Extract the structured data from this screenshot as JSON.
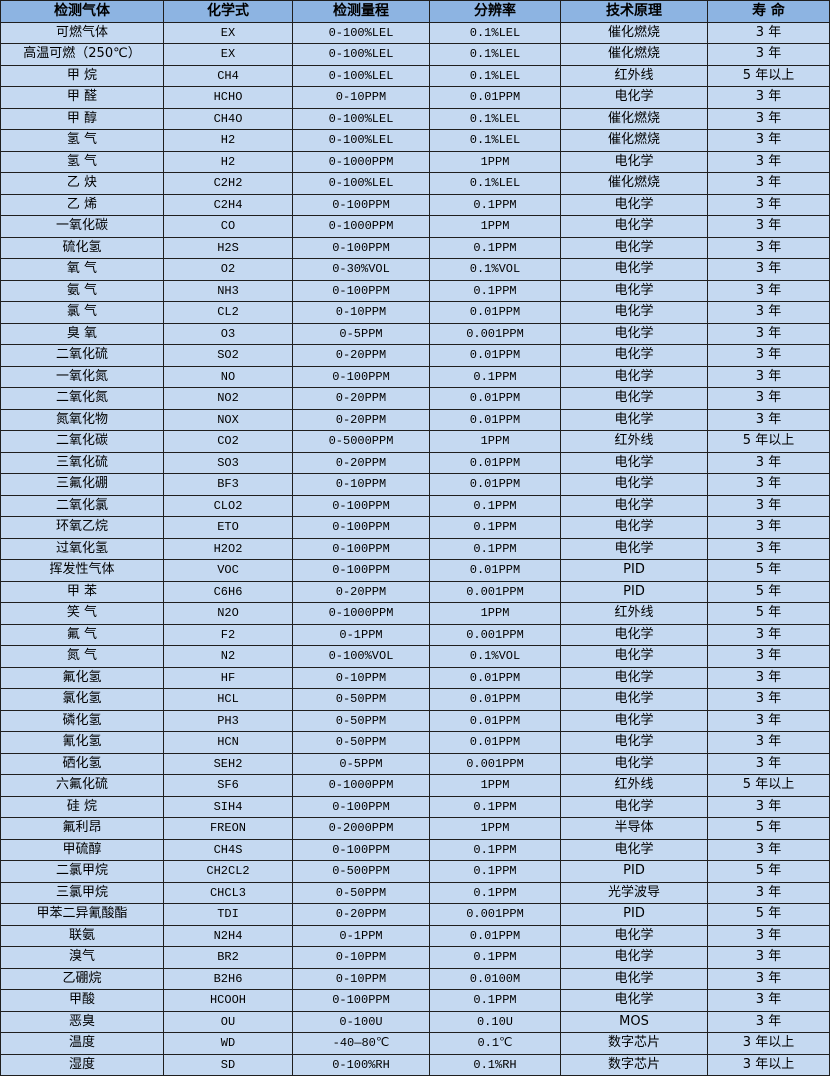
{
  "colors": {
    "header_bg": "#8db4e2",
    "row_bg": "#c5d9f1",
    "border": "#1f1f1f"
  },
  "table": {
    "headers": [
      "检测气体",
      "化学式",
      "检测量程",
      "分辨率",
      "技术原理",
      "寿 命"
    ],
    "rows": [
      [
        "可燃气体",
        "EX",
        "0-100%LEL",
        "0.1%LEL",
        "催化燃烧",
        "3 年"
      ],
      [
        "高温可燃（250℃）",
        "EX",
        "0-100%LEL",
        "0.1%LEL",
        "催化燃烧",
        "3 年"
      ],
      [
        "甲 烷",
        "CH4",
        "0-100%LEL",
        "0.1%LEL",
        "红外线",
        "5 年以上"
      ],
      [
        "甲 醛",
        "HCHO",
        "0-10PPM",
        "0.01PPM",
        "电化学",
        "3 年"
      ],
      [
        "甲 醇",
        "CH4O",
        "0-100%LEL",
        "0.1%LEL",
        "催化燃烧",
        "3 年"
      ],
      [
        "氢 气",
        "H2",
        "0-100%LEL",
        "0.1%LEL",
        "催化燃烧",
        "3 年"
      ],
      [
        "氢 气",
        "H2",
        "0-1000PPM",
        "1PPM",
        "电化学",
        "3 年"
      ],
      [
        "乙 炔",
        "C2H2",
        "0-100%LEL",
        "0.1%LEL",
        "催化燃烧",
        "3 年"
      ],
      [
        "乙 烯",
        "C2H4",
        "0-100PPM",
        "0.1PPM",
        "电化学",
        "3 年"
      ],
      [
        "一氧化碳",
        "CO",
        "0-1000PPM",
        "1PPM",
        "电化学",
        "3 年"
      ],
      [
        "硫化氢",
        "H2S",
        "0-100PPM",
        "0.1PPM",
        "电化学",
        "3 年"
      ],
      [
        "氧 气",
        "O2",
        "0-30%VOL",
        "0.1%VOL",
        "电化学",
        "3 年"
      ],
      [
        "氨 气",
        "NH3",
        "0-100PPM",
        "0.1PPM",
        "电化学",
        "3 年"
      ],
      [
        "氯 气",
        "CL2",
        "0-10PPM",
        "0.01PPM",
        "电化学",
        "3 年"
      ],
      [
        "臭 氧",
        "O3",
        "0-5PPM",
        "0.001PPM",
        "电化学",
        "3 年"
      ],
      [
        "二氧化硫",
        "SO2",
        "0-20PPM",
        "0.01PPM",
        "电化学",
        "3 年"
      ],
      [
        "一氧化氮",
        "NO",
        "0-100PPM",
        "0.1PPM",
        "电化学",
        "3 年"
      ],
      [
        "二氧化氮",
        "NO2",
        "0-20PPM",
        "0.01PPM",
        "电化学",
        "3 年"
      ],
      [
        "氮氧化物",
        "NOX",
        "0-20PPM",
        "0.01PPM",
        "电化学",
        "3 年"
      ],
      [
        "二氧化碳",
        "CO2",
        "0-5000PPM",
        "1PPM",
        "红外线",
        "5 年以上"
      ],
      [
        "三氧化硫",
        "SO3",
        "0-20PPM",
        "0.01PPM",
        "电化学",
        "3 年"
      ],
      [
        "三氟化硼",
        "BF3",
        "0-10PPM",
        "0.01PPM",
        "电化学",
        "3 年"
      ],
      [
        "二氧化氯",
        "CLO2",
        "0-100PPM",
        "0.1PPM",
        "电化学",
        "3 年"
      ],
      [
        "环氧乙烷",
        "ETO",
        "0-100PPM",
        "0.1PPM",
        "电化学",
        "3 年"
      ],
      [
        "过氧化氢",
        "H2O2",
        "0-100PPM",
        "0.1PPM",
        "电化学",
        "3 年"
      ],
      [
        "挥发性气体",
        "VOC",
        "0-100PPM",
        "0.01PPM",
        "PID",
        "5 年"
      ],
      [
        "甲 苯",
        "C6H6",
        "0-20PPM",
        "0.001PPM",
        "PID",
        "5 年"
      ],
      [
        "笑 气",
        "N2O",
        "0-1000PPM",
        "1PPM",
        "红外线",
        "5 年"
      ],
      [
        "氟 气",
        "F2",
        "0-1PPM",
        "0.001PPM",
        "电化学",
        "3 年"
      ],
      [
        "氮 气",
        "N2",
        "0-100%VOL",
        "0.1%VOL",
        "电化学",
        "3 年"
      ],
      [
        "氟化氢",
        "HF",
        "0-10PPM",
        "0.01PPM",
        "电化学",
        "3 年"
      ],
      [
        "氯化氢",
        "HCL",
        "0-50PPM",
        "0.01PPM",
        "电化学",
        "3 年"
      ],
      [
        "磷化氢",
        "PH3",
        "0-50PPM",
        "0.01PPM",
        "电化学",
        "3 年"
      ],
      [
        "氰化氢",
        "HCN",
        "0-50PPM",
        "0.01PPM",
        "电化学",
        "3 年"
      ],
      [
        "硒化氢",
        "SEH2",
        "0-5PPM",
        "0.001PPM",
        "电化学",
        "3 年"
      ],
      [
        "六氟化硫",
        "SF6",
        "0-1000PPM",
        "1PPM",
        "红外线",
        "5 年以上"
      ],
      [
        "硅 烷",
        "SIH4",
        "0-100PPM",
        "0.1PPM",
        "电化学",
        "3 年"
      ],
      [
        "氟利昂",
        "FREON",
        "0-2000PPM",
        "1PPM",
        "半导体",
        "5 年"
      ],
      [
        "甲硫醇",
        "CH4S",
        "0-100PPM",
        "0.1PPM",
        "电化学",
        "3 年"
      ],
      [
        "二氯甲烷",
        "CH2CL2",
        "0-500PPM",
        "0.1PPM",
        "PID",
        "5 年"
      ],
      [
        "三氯甲烷",
        "CHCL3",
        "0-50PPM",
        "0.1PPM",
        "光学波导",
        "3 年"
      ],
      [
        "甲苯二异氰酸酯",
        "TDI",
        "0-20PPM",
        "0.001PPM",
        "PID",
        "5 年"
      ],
      [
        "联氨",
        "N2H4",
        "0-1PPM",
        "0.01PPM",
        "电化学",
        "3 年"
      ],
      [
        "溴气",
        "BR2",
        "0-10PPM",
        "0.1PPM",
        "电化学",
        "3 年"
      ],
      [
        "乙硼烷",
        "B2H6",
        "0-10PPM",
        "0.0100M",
        "电化学",
        "3 年"
      ],
      [
        "甲酸",
        "HCOOH",
        "0-100PPM",
        "0.1PPM",
        "电化学",
        "3 年"
      ],
      [
        "恶臭",
        "OU",
        "0-100U",
        "0.10U",
        "MOS",
        "3 年"
      ],
      [
        "温度",
        "WD",
        "-40—80℃",
        "0.1℃",
        "数字芯片",
        "3 年以上"
      ],
      [
        "湿度",
        "SD",
        "0-100%RH",
        "0.1%RH",
        "数字芯片",
        "3 年以上"
      ]
    ]
  }
}
